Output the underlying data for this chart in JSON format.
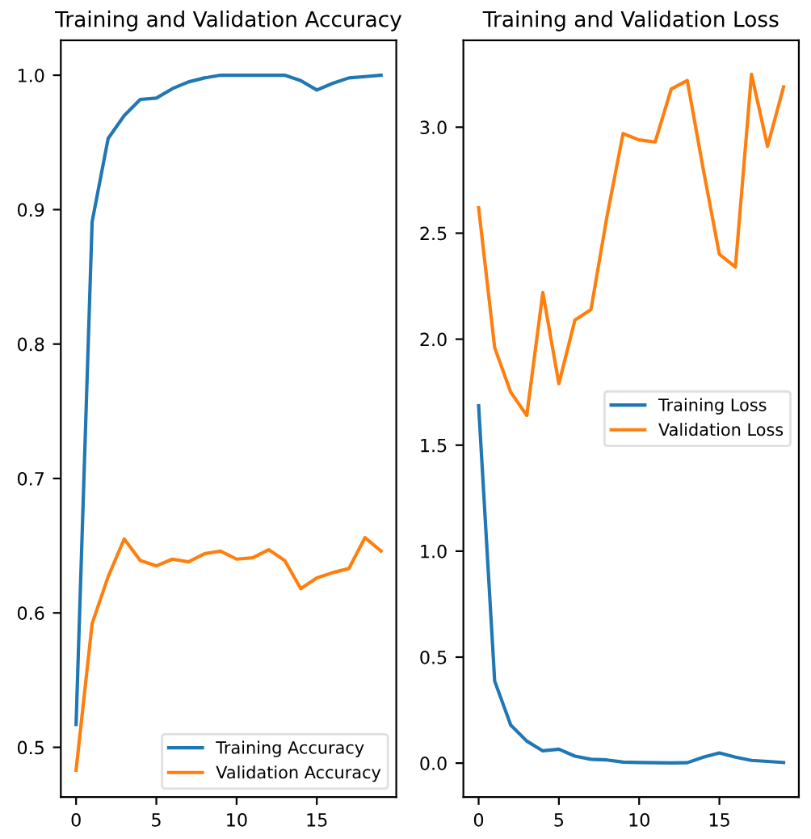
{
  "chart_data": [
    {
      "type": "line",
      "title": "Training and Validation Accuracy",
      "x": [
        0,
        1,
        2,
        3,
        4,
        5,
        6,
        7,
        8,
        9,
        10,
        11,
        12,
        13,
        14,
        15,
        16,
        17,
        18,
        19
      ],
      "series": [
        {
          "name": "Training Accuracy",
          "color": "#1f77b4",
          "values": [
            0.517,
            0.891,
            0.953,
            0.97,
            0.982,
            0.983,
            0.99,
            0.995,
            0.998,
            1.0,
            1.0,
            1.0,
            1.0,
            1.0,
            0.996,
            0.989,
            0.994,
            0.998,
            0.999,
            1.0
          ]
        },
        {
          "name": "Validation Accuracy",
          "color": "#ff7f0e",
          "values": [
            0.483,
            0.592,
            0.627,
            0.655,
            0.639,
            0.635,
            0.64,
            0.638,
            0.644,
            0.646,
            0.64,
            0.641,
            0.647,
            0.639,
            0.618,
            0.626,
            0.63,
            0.633,
            0.656,
            0.646
          ]
        }
      ],
      "xlim": [
        -0.95,
        19.95
      ],
      "ylim": [
        0.463,
        1.026
      ],
      "xticks": [
        0,
        5,
        10,
        15
      ],
      "yticks": [
        0.5,
        0.6,
        0.7,
        0.8,
        0.9,
        {
          "value": 1,
          "label": "1.0"
        }
      ],
      "legend": "bottom right",
      "grid": false
    },
    {
      "type": "line",
      "title": "Training and Validation Loss",
      "x": [
        0,
        1,
        2,
        3,
        4,
        5,
        6,
        7,
        8,
        9,
        10,
        11,
        12,
        13,
        14,
        15,
        16,
        17,
        18,
        19
      ],
      "series": [
        {
          "name": "Training Loss",
          "color": "#1f77b4",
          "values": [
            1.686,
            0.387,
            0.18,
            0.104,
            0.058,
            0.066,
            0.033,
            0.018,
            0.015,
            0.005,
            0.003,
            0.002,
            0.001,
            0.002,
            0.028,
            0.048,
            0.028,
            0.013,
            0.008,
            0.003
          ]
        },
        {
          "name": "Validation Loss",
          "color": "#ff7f0e",
          "values": [
            2.62,
            1.96,
            1.75,
            1.64,
            2.22,
            1.79,
            2.09,
            2.14,
            2.58,
            2.97,
            2.94,
            2.93,
            3.18,
            3.22,
            2.8,
            2.4,
            2.34,
            3.25,
            2.91,
            3.19
          ]
        }
      ],
      "xlim": [
        -0.95,
        19.95
      ],
      "ylim": [
        -0.16,
        3.41
      ],
      "xticks": [
        0,
        5,
        10,
        15
      ],
      "yticks": [
        {
          "value": 0,
          "label": "0.0"
        },
        0.5,
        {
          "value": 1,
          "label": "1.0"
        },
        1.5,
        {
          "value": 2,
          "label": "2.0"
        },
        2.5,
        {
          "value": 3,
          "label": "3.0"
        }
      ],
      "legend": "right",
      "grid": false
    }
  ]
}
